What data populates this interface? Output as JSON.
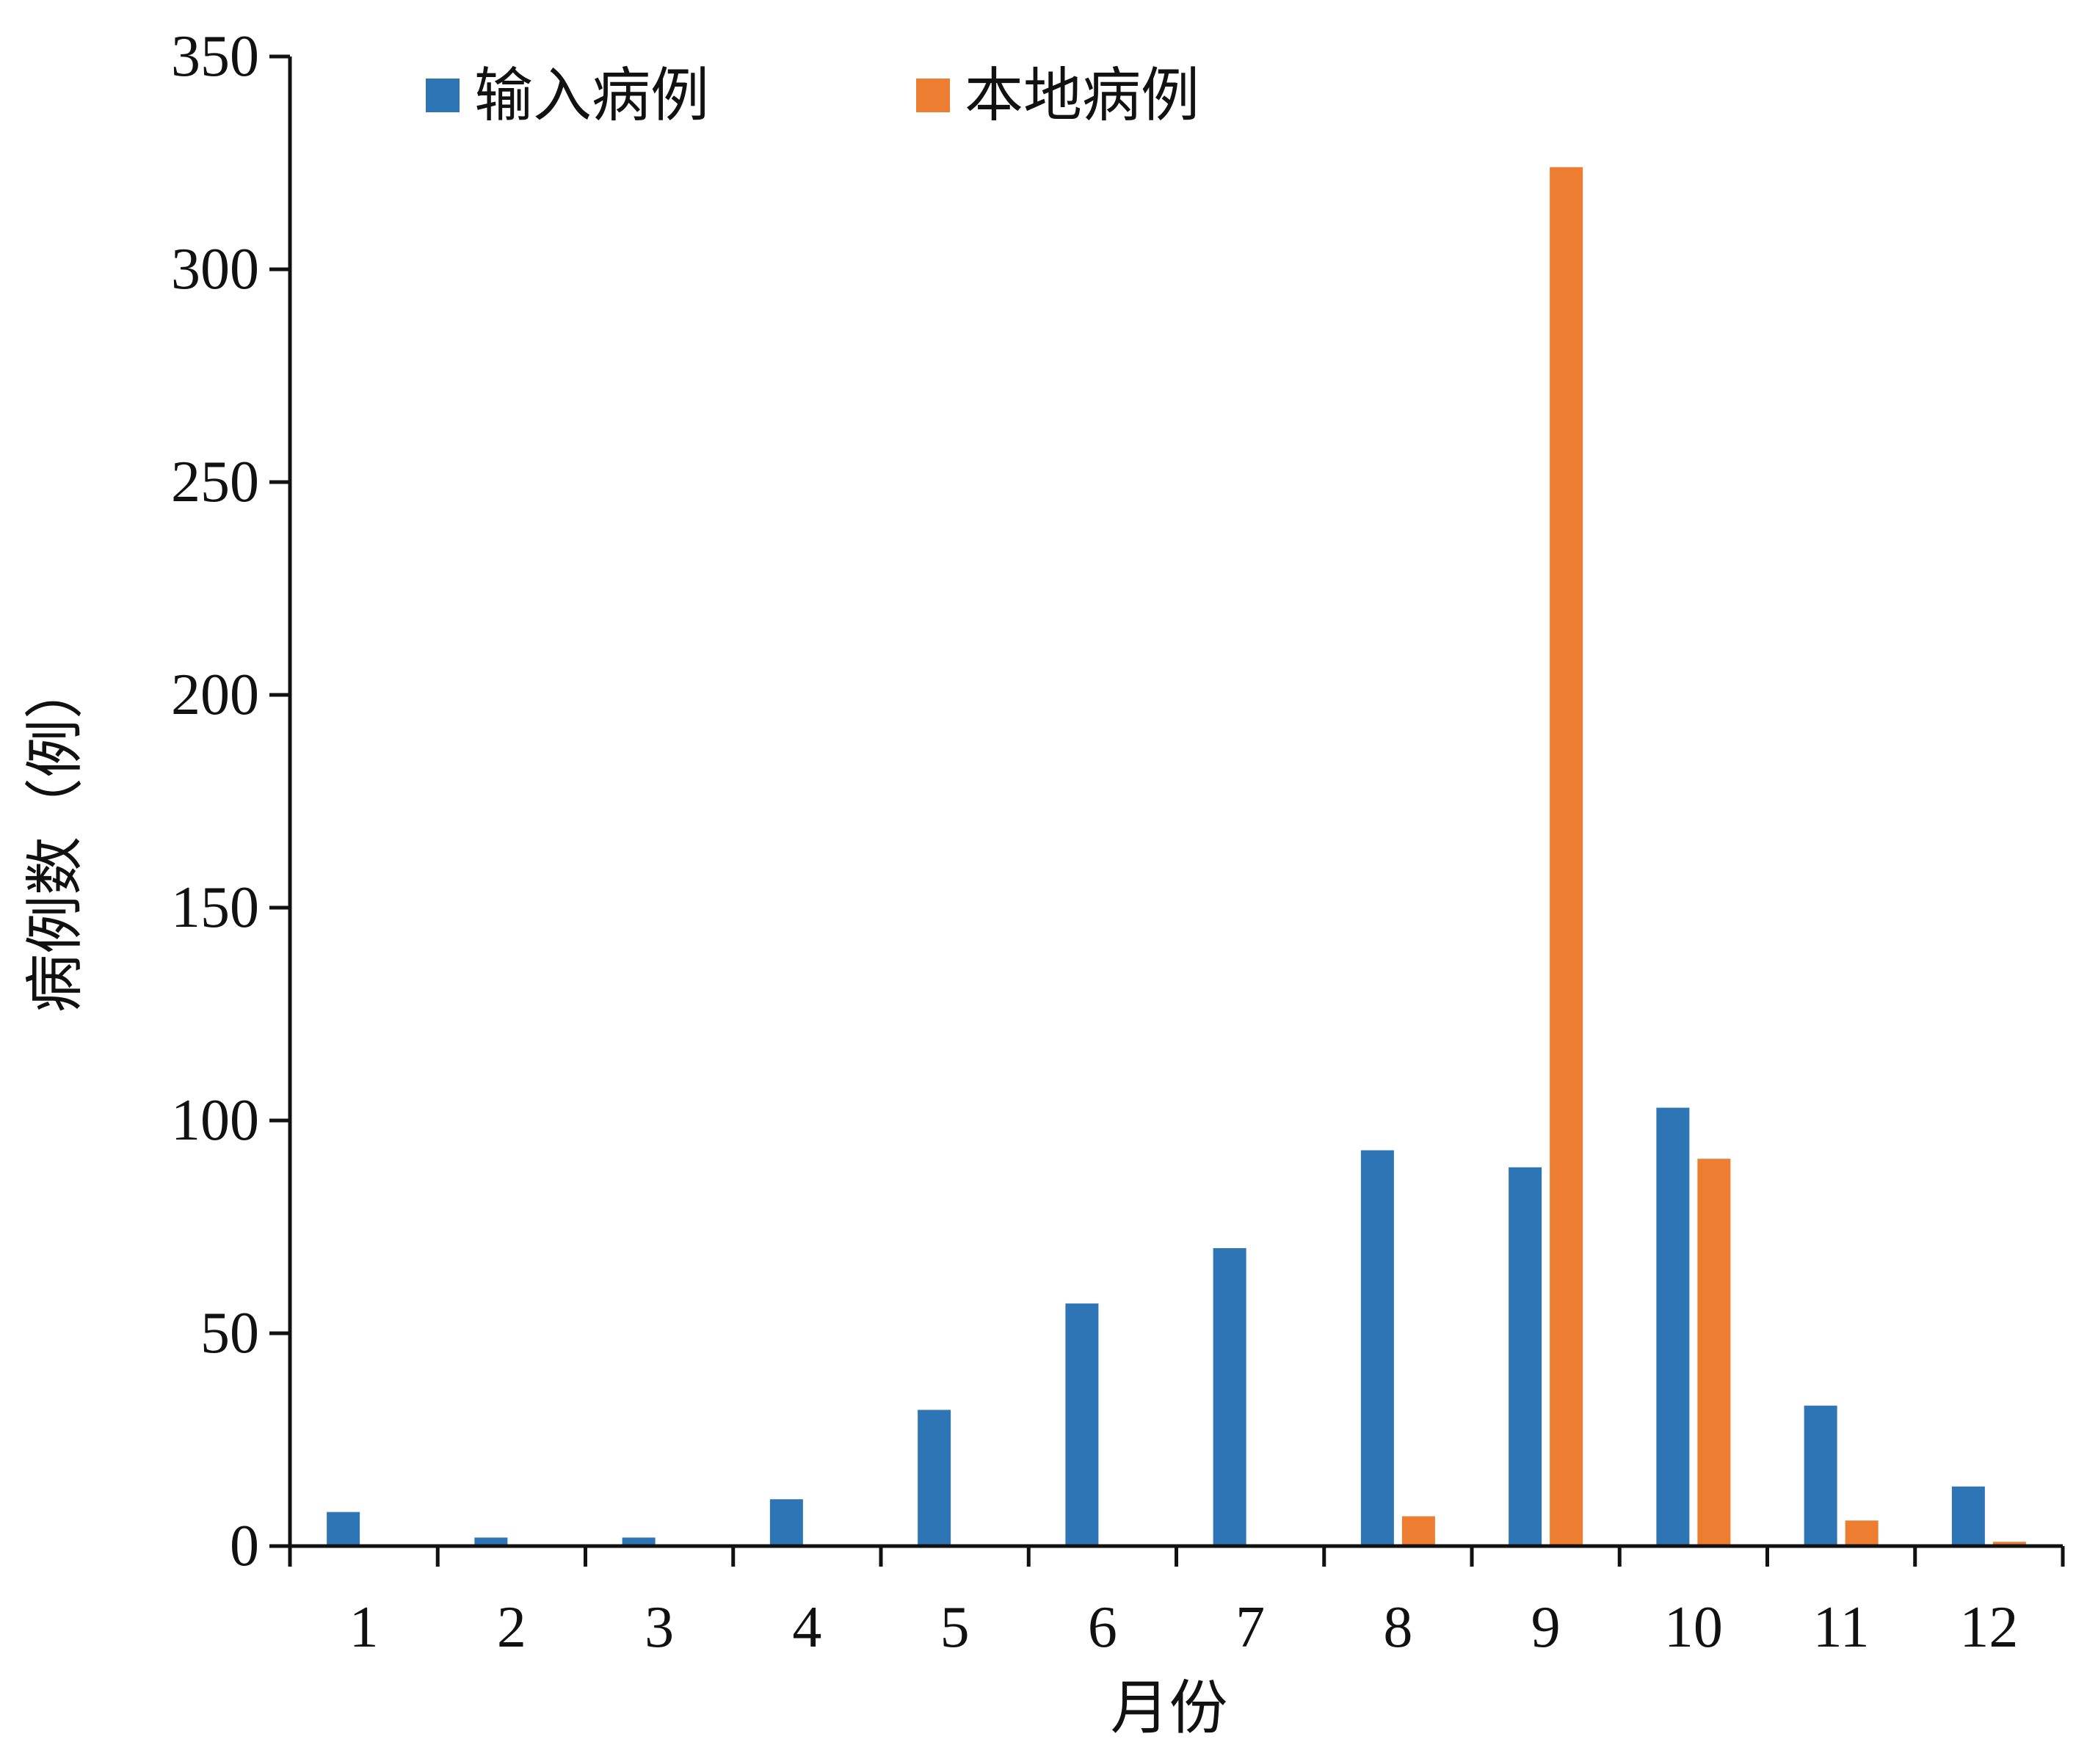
{
  "chart_data": {
    "type": "bar",
    "title": "",
    "xlabel": "月份",
    "ylabel": "病例数（例）",
    "categories": [
      "1",
      "2",
      "3",
      "4",
      "5",
      "6",
      "7",
      "8",
      "9",
      "10",
      "11",
      "12"
    ],
    "series": [
      {
        "name": "输入病例",
        "color": "#2E75B6",
        "values": [
          8,
          2,
          2,
          11,
          32,
          57,
          70,
          93,
          89,
          103,
          33,
          14
        ]
      },
      {
        "name": "本地病例",
        "color": "#ED7D31",
        "values": [
          0,
          0,
          0,
          0,
          0,
          0,
          0,
          7,
          324,
          91,
          6,
          1
        ]
      }
    ],
    "ylim": [
      0,
      350
    ],
    "yticks": [
      0,
      50,
      100,
      150,
      200,
      250,
      300,
      350
    ],
    "grid": false,
    "legend": "top-left"
  }
}
